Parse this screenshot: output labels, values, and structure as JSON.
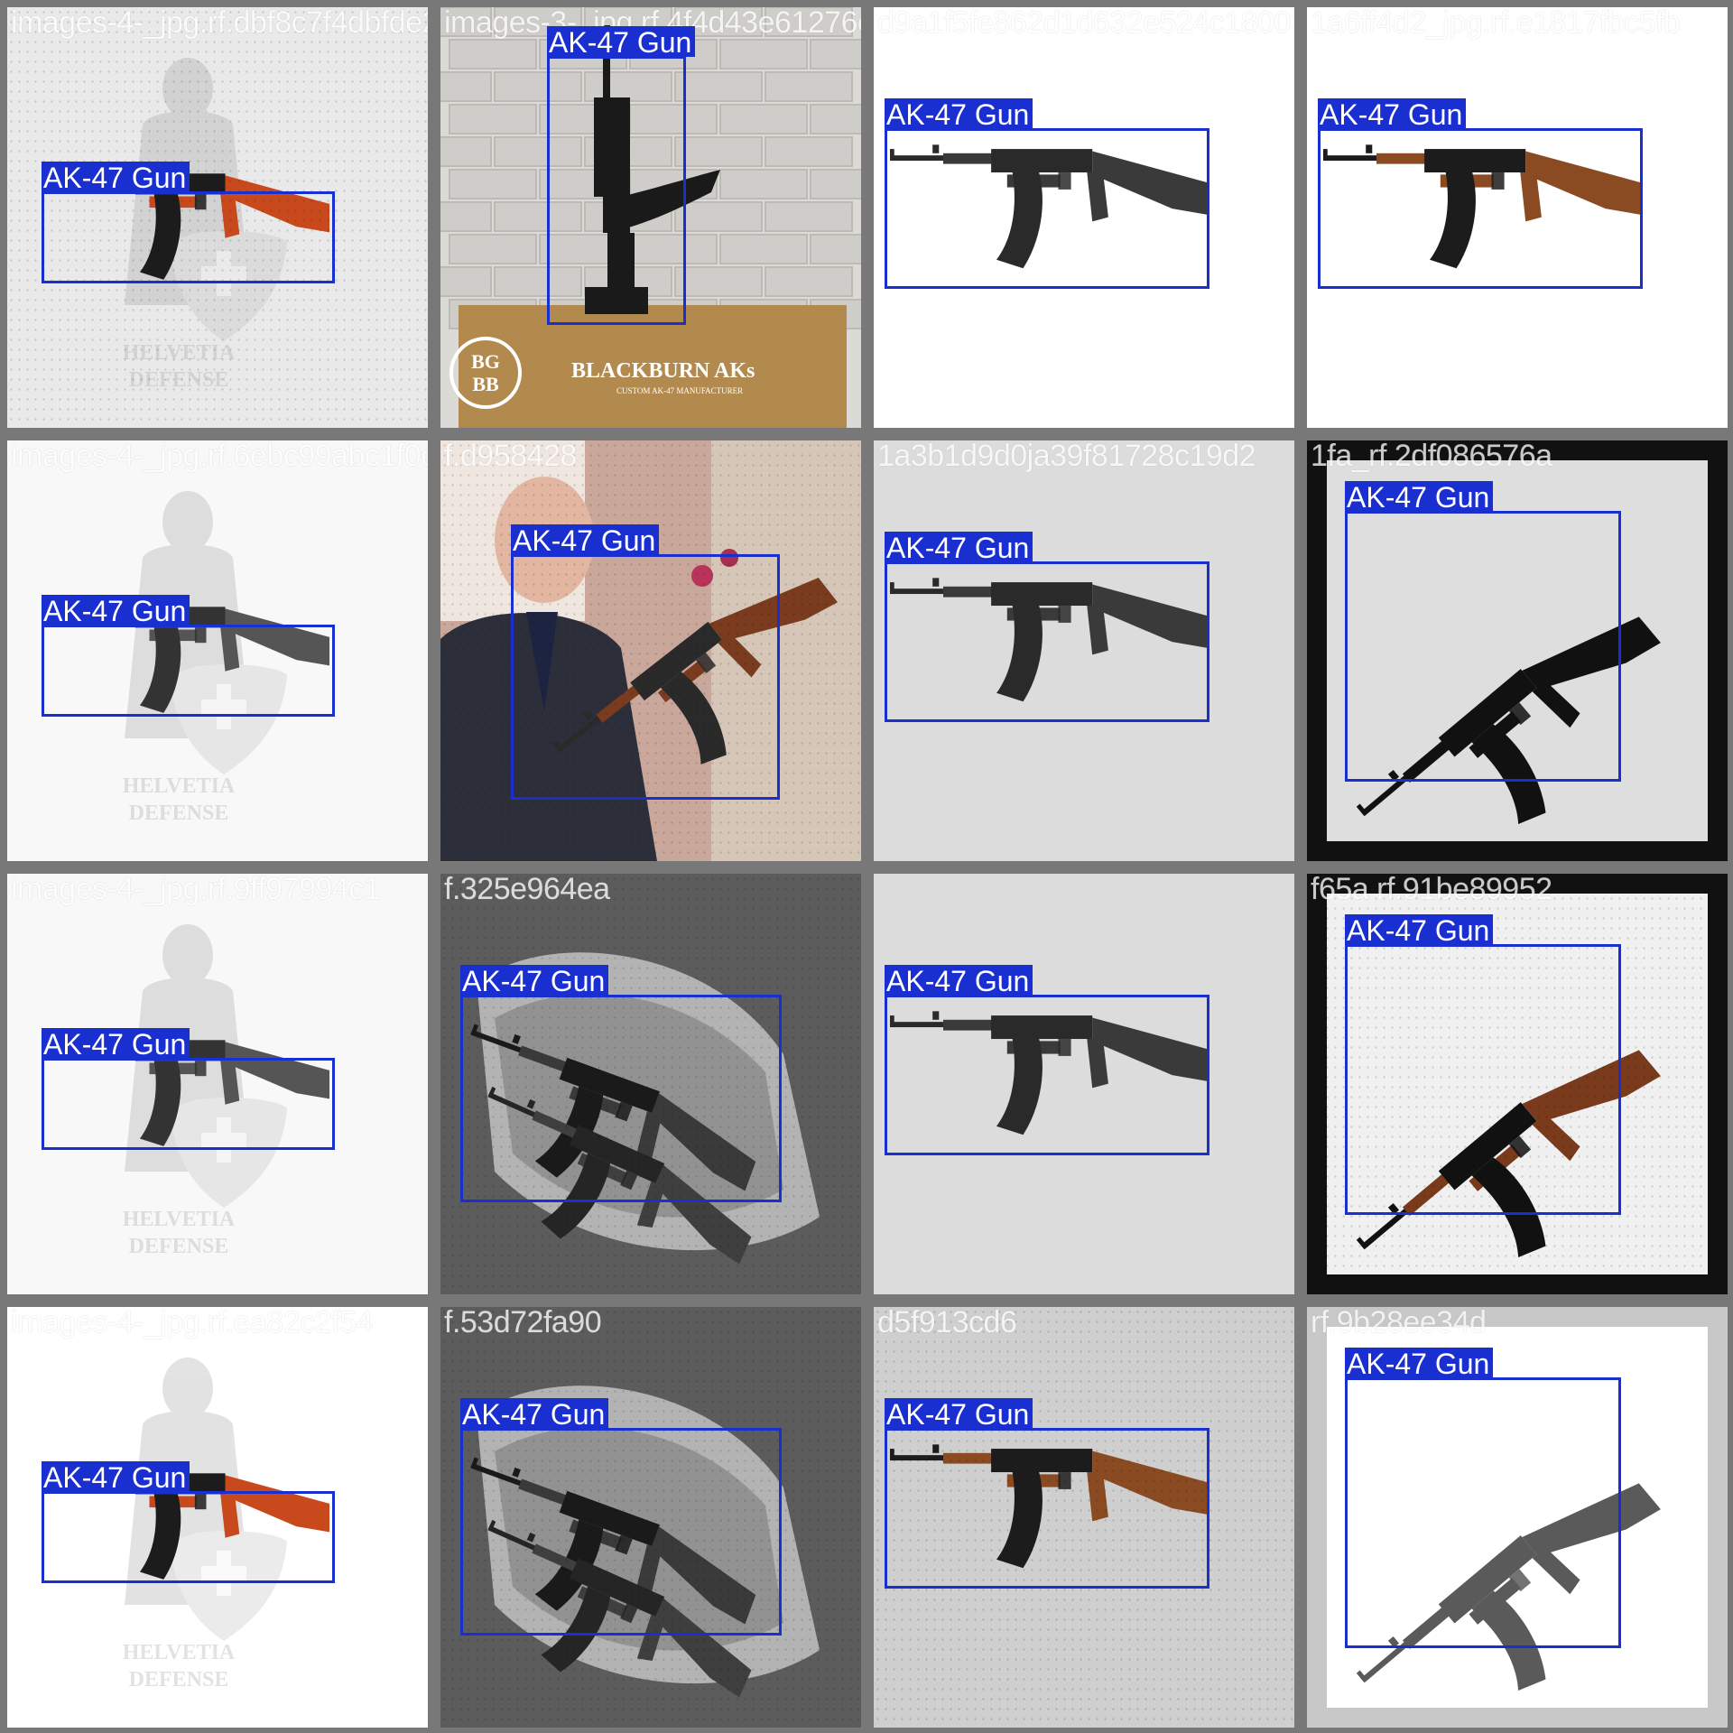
{
  "label_color": "#1a2fd0",
  "grid_gap_color": "#787878",
  "tiles": [
    {
      "filename": "images-4-_jpg.rf.dbf8c7f4dbfde2ea28016d5a4e9b2b6a",
      "label": "AK-47 Gun",
      "bg": "#e9e9e9",
      "style": "helvetia-red",
      "noise": true
    },
    {
      "filename": "images-3-_jpg.rf.4f4d43e61276cde",
      "label": "AK-47 Gun",
      "bg": "#d8d6d2",
      "style": "standing",
      "noise": false,
      "logo_text": "BLACKBURN AKs",
      "logo_sub": "CUSTOM AK-47 MANUFACTURER",
      "logo_mark": "BG BB"
    },
    {
      "filename": "d9a1f5fe862d1d632e524c1800",
      "label": "AK-47 Gun",
      "bg": "#ffffff",
      "style": "side-bw",
      "noise": false
    },
    {
      "filename": "1a6ff4d2_jpg.rf.e1817fbc5fb",
      "label": "AK-47 Gun",
      "bg": "#ffffff",
      "style": "side-wood",
      "noise": false
    },
    {
      "filename": "images-4-_jpg.rf.6ebc99abc1f0e6a5b2b51",
      "label": "AK-47 Gun",
      "bg": "#f8f8f8",
      "style": "helvetia-bw",
      "noise": false
    },
    {
      "filename": "f.d958428",
      "label": "AK-47 Gun",
      "bg": "#c9a79a",
      "style": "person",
      "noise": true
    },
    {
      "filename": "1a3b1d9d0ja39f81728c19d2",
      "label": "AK-47 Gun",
      "bg": "#dcdcdc",
      "style": "side-bw",
      "noise": false
    },
    {
      "filename": "1fa_rf.2df086576a",
      "label": "AK-47 Gun",
      "bg": "#111111",
      "style": "folding",
      "noise": false
    },
    {
      "filename": "images-4-_jpg.rf.9ff97994c1",
      "label": "AK-47 Gun",
      "bg": "#f8f8f8",
      "style": "helvetia-bw",
      "noise": false
    },
    {
      "filename": "f.325e964ea",
      "label": "AK-47 Gun",
      "bg": "#444444",
      "style": "case",
      "noise": true
    },
    {
      "filename": "",
      "label": "AK-47 Gun",
      "bg": "#dcdcdc",
      "style": "side-bw",
      "noise": false
    },
    {
      "filename": "f65a rf.91be89952",
      "label": "AK-47 Gun",
      "bg": "#111111",
      "style": "folding-wood",
      "noise": true
    },
    {
      "filename": "images-4-_jpg.rf.ea82c2f54",
      "label": "AK-47 Gun",
      "bg": "#ffffff",
      "style": "helvetia-red",
      "noise": false
    },
    {
      "filename": "f.53d72fa90",
      "label": "AK-47 Gun",
      "bg": "#444444",
      "style": "case",
      "noise": true
    },
    {
      "filename": "d5f913cd6",
      "label": "AK-47 Gun",
      "bg": "#cfcfcf",
      "style": "side-wood",
      "noise": true
    },
    {
      "filename": "rf.9b28ee34d",
      "label": "AK-47 Gun",
      "bg": "#c8c8c8",
      "style": "folding-gray",
      "noise": false
    }
  ]
}
